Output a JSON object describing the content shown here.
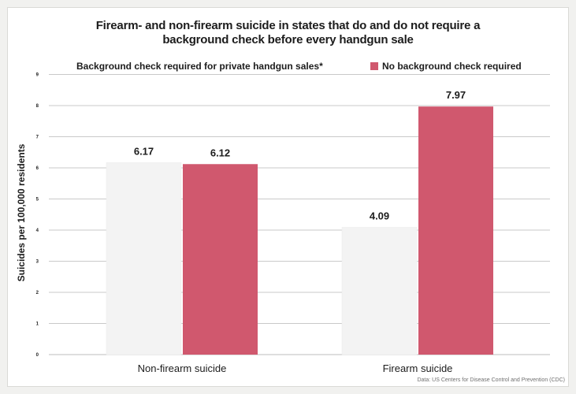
{
  "chart_data": {
    "type": "bar",
    "title": "Firearm- and non-firearm suicide in states that do and do not require a",
    "title_line2": "background check before every handgun sale",
    "ylabel": "Suicides per 100,000 residents",
    "xlabel": "",
    "ylim": [
      0,
      9
    ],
    "yticks": [
      "0",
      "1",
      "2",
      "3",
      "4",
      "5",
      "6",
      "7",
      "8",
      "9"
    ],
    "categories": [
      "Non-firearm suicide",
      "Firearm suicide"
    ],
    "series": [
      {
        "name": "Background check required for private handgun sales*",
        "color": "#f3f3f3",
        "values": [
          6.17,
          4.09
        ],
        "labels": [
          "6.17",
          "4.09"
        ]
      },
      {
        "name": "No background check required",
        "color": "#d0586e",
        "values": [
          6.12,
          7.97
        ],
        "labels": [
          "6.12",
          "7.97"
        ]
      }
    ],
    "grid": true,
    "legend_position": "top",
    "source": "Data: US Centers for Disease Control and Prevention (CDC)"
  }
}
